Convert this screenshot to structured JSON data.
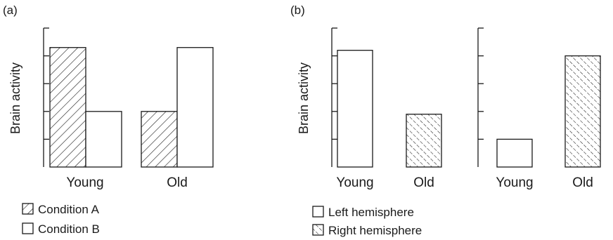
{
  "chart_data": [
    {
      "type": "bar",
      "panel": "(a)",
      "ylabel": "Brain activity",
      "categories": [
        "Young",
        "Old"
      ],
      "ylim": [
        0,
        5
      ],
      "grid": false,
      "legend_placement": "bottom-left",
      "series": [
        {
          "name": "Condition A",
          "fill": "hatch-solid",
          "values": [
            4.3,
            2.0
          ]
        },
        {
          "name": "Condition B",
          "fill": "open",
          "values": [
            2.0,
            4.3
          ]
        }
      ]
    },
    {
      "type": "bar",
      "panel": "(b)",
      "ylabel": "Brain activity",
      "ylim": [
        0,
        5
      ],
      "grid": false,
      "legend_placement": "bottom-left",
      "subplots": [
        {
          "categories": [
            "Young",
            "Old"
          ],
          "values": [
            4.2,
            1.9
          ],
          "fills": [
            "open",
            "hatch-dashed"
          ]
        },
        {
          "categories": [
            "Young",
            "Old"
          ],
          "values": [
            1.0,
            4.0
          ],
          "fills": [
            "open",
            "hatch-dashed"
          ]
        }
      ],
      "legend": [
        {
          "name": "Left hemisphere",
          "fill": "open"
        },
        {
          "name": "Right hemisphere",
          "fill": "hatch-dashed"
        }
      ]
    }
  ]
}
